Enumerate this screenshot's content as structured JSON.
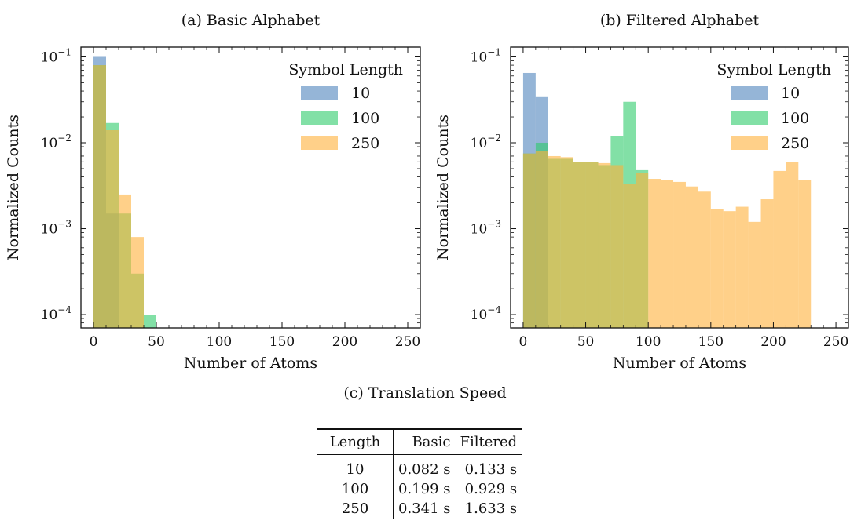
{
  "colors": {
    "s10": "#4f83bd",
    "s100": "#2ecc6a",
    "s250": "#ffb03b"
  },
  "chart_data": [
    {
      "type": "bar",
      "title": "(a) Basic Alphabet",
      "xlabel": "Number of Atoms",
      "ylabel": "Normalized Counts",
      "yscale": "log",
      "xlim": [
        -10,
        260
      ],
      "ylim": [
        7e-05,
        0.13
      ],
      "xticks": [
        "0",
        "50",
        "100",
        "150",
        "200",
        "250"
      ],
      "xtick_values": [
        0,
        50,
        100,
        150,
        200,
        250
      ],
      "yticks": [
        "10⁻¹",
        "10⁻²",
        "10⁻³",
        "10⁻⁴"
      ],
      "ytick_values": [
        0.1,
        0.01,
        0.001,
        0.0001
      ],
      "legend_title": "Symbol Length",
      "legend_position": "top-right",
      "bin_width": 10,
      "series": [
        {
          "name": "10",
          "color": "#4f83bd",
          "x": [
            0,
            10
          ],
          "values": [
            0.1,
            0.0015
          ]
        },
        {
          "name": "100",
          "color": "#2ecc6a",
          "x": [
            0,
            10,
            20,
            30,
            40
          ],
          "values": [
            0.08,
            0.017,
            0.0015,
            0.0003,
            0.0001
          ]
        },
        {
          "name": "250",
          "color": "#ffb03b",
          "x": [
            0,
            10,
            20,
            30
          ],
          "values": [
            0.08,
            0.014,
            0.0025,
            0.0008
          ]
        }
      ]
    },
    {
      "type": "bar",
      "title": "(b) Filtered Alphabet",
      "xlabel": "Number of Atoms",
      "ylabel": "Normalized Counts",
      "yscale": "log",
      "xlim": [
        -10,
        260
      ],
      "ylim": [
        7e-05,
        0.13
      ],
      "xticks": [
        "0",
        "50",
        "100",
        "150",
        "200",
        "250"
      ],
      "xtick_values": [
        0,
        50,
        100,
        150,
        200,
        250
      ],
      "yticks": [
        "10⁻¹",
        "10⁻²",
        "10⁻³",
        "10⁻⁴"
      ],
      "ytick_values": [
        0.1,
        0.01,
        0.001,
        0.0001
      ],
      "legend_title": "Symbol Length",
      "legend_position": "top-right",
      "bin_width": 10,
      "series": [
        {
          "name": "10",
          "color": "#4f83bd",
          "x": [
            0,
            10
          ],
          "values": [
            0.065,
            0.034
          ]
        },
        {
          "name": "100",
          "color": "#2ecc6a",
          "x": [
            0,
            10,
            20,
            30,
            40,
            50,
            60,
            70,
            80,
            90
          ],
          "values": [
            0.0075,
            0.01,
            0.0065,
            0.0065,
            0.006,
            0.006,
            0.0055,
            0.012,
            0.03,
            0.0048
          ]
        },
        {
          "name": "250",
          "color": "#ffb03b",
          "x": [
            0,
            10,
            20,
            30,
            40,
            50,
            60,
            70,
            80,
            90,
            100,
            110,
            120,
            130,
            140,
            150,
            160,
            170,
            180,
            190,
            200,
            210,
            220
          ],
          "values": [
            0.0075,
            0.008,
            0.007,
            0.0068,
            0.006,
            0.006,
            0.0058,
            0.0055,
            0.0033,
            0.0045,
            0.0038,
            0.0037,
            0.0035,
            0.0031,
            0.0027,
            0.0017,
            0.0016,
            0.0018,
            0.0012,
            0.0022,
            0.0047,
            0.006,
            0.0037
          ]
        }
      ]
    }
  ],
  "table": {
    "caption": "(c) Translation Speed",
    "headers": [
      "Length",
      "Basic",
      "Filtered"
    ],
    "rows": [
      [
        "10",
        "0.082 s",
        "0.133 s"
      ],
      [
        "100",
        "0.199 s",
        "0.929 s"
      ],
      [
        "250",
        "0.341 s",
        "1.633 s"
      ]
    ]
  }
}
